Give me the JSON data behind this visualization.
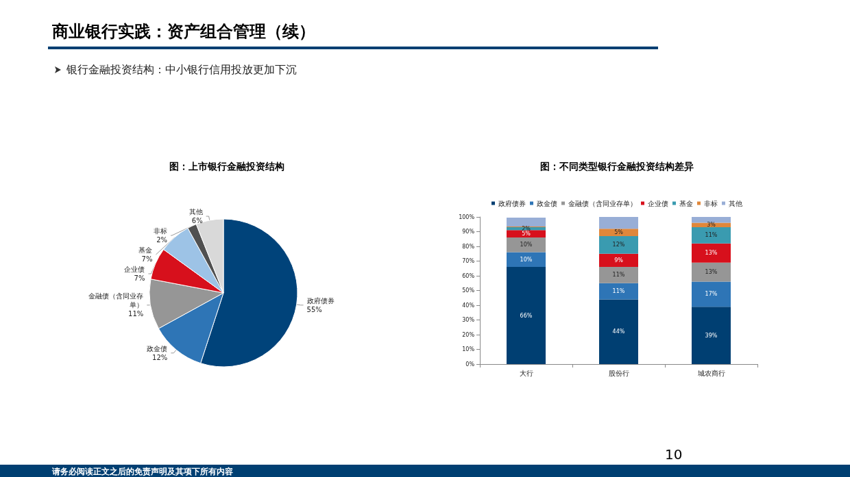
{
  "chart_data": [
    {
      "type": "pie",
      "title": "图：上市银行金融投资结构",
      "annotations": [
        "商业银行实践：资产组合管理（续）",
        "银行金融投资结构：中小银行信用投放更加下沉",
        "请务必阅读正文之后的免责声明及其项下所有内容",
        "10"
      ],
      "categories": [
        "政府债券",
        "政金债",
        "金融债（含同业存单）",
        "企业债",
        "基金",
        "非标",
        "其他"
      ],
      "values": [
        55,
        12,
        11,
        7,
        7,
        2,
        6
      ],
      "value_labels": [
        "55%",
        "12%",
        "11%",
        "7%",
        "7%",
        "2%",
        "6%"
      ],
      "colors": [
        "#00437a",
        "#2e75b6",
        "#969696",
        "#d7101c",
        "#9dc3e6",
        "#505050",
        "#d9d9d9"
      ],
      "legend": false
    },
    {
      "type": "bar",
      "title": "图：不同类型银行金融投资结构差异",
      "stacked": true,
      "legend": "top",
      "categories": [
        "大行",
        "股份行",
        "城农商行"
      ],
      "ylim": [
        0,
        100
      ],
      "yticks": [
        {
          "value": 0,
          "label": "0%"
        },
        {
          "value": 10,
          "label": "10%"
        },
        {
          "value": 20,
          "label": "20%"
        },
        {
          "value": 30,
          "label": "30%"
        },
        {
          "value": 40,
          "label": "40%"
        },
        {
          "value": 50,
          "label": "50%"
        },
        {
          "value": 60,
          "label": "60%"
        },
        {
          "value": 70,
          "label": "70%"
        },
        {
          "value": 80,
          "label": "80%"
        },
        {
          "value": 90,
          "label": "90%"
        },
        {
          "value": 100,
          "label": "100%"
        }
      ],
      "grid": false,
      "series": [
        {
          "name": "政府债券",
          "color": "#003f72",
          "values": [
            66,
            44,
            39
          ],
          "value_labels": [
            "66%",
            "44%",
            "39%"
          ]
        },
        {
          "name": "政金债",
          "color": "#2e75b6",
          "values": [
            10,
            11,
            17
          ],
          "value_labels": [
            "10%",
            "11%",
            "17%"
          ]
        },
        {
          "name": "金融债（含同业存单）",
          "color": "#969696",
          "values": [
            10,
            11,
            13
          ],
          "value_labels": [
            "10%",
            "11%",
            "13%"
          ]
        },
        {
          "name": "企业债",
          "color": "#d7101c",
          "values": [
            5,
            9,
            13
          ],
          "value_labels": [
            "5%",
            "9%",
            "13%"
          ]
        },
        {
          "name": "基金",
          "color": "#3a9bb0",
          "values": [
            2,
            12,
            11
          ],
          "value_labels": [
            "2%",
            "12%",
            "11%"
          ]
        },
        {
          "name": "非标",
          "color": "#e0873a",
          "values": [
            0.5,
            5,
            3
          ],
          "value_labels": [
            null,
            "5%",
            "3%"
          ]
        },
        {
          "name": "其他",
          "color": "#98aed6",
          "values": [
            6,
            8,
            4
          ],
          "value_labels": [
            null,
            null,
            null
          ]
        }
      ]
    }
  ]
}
